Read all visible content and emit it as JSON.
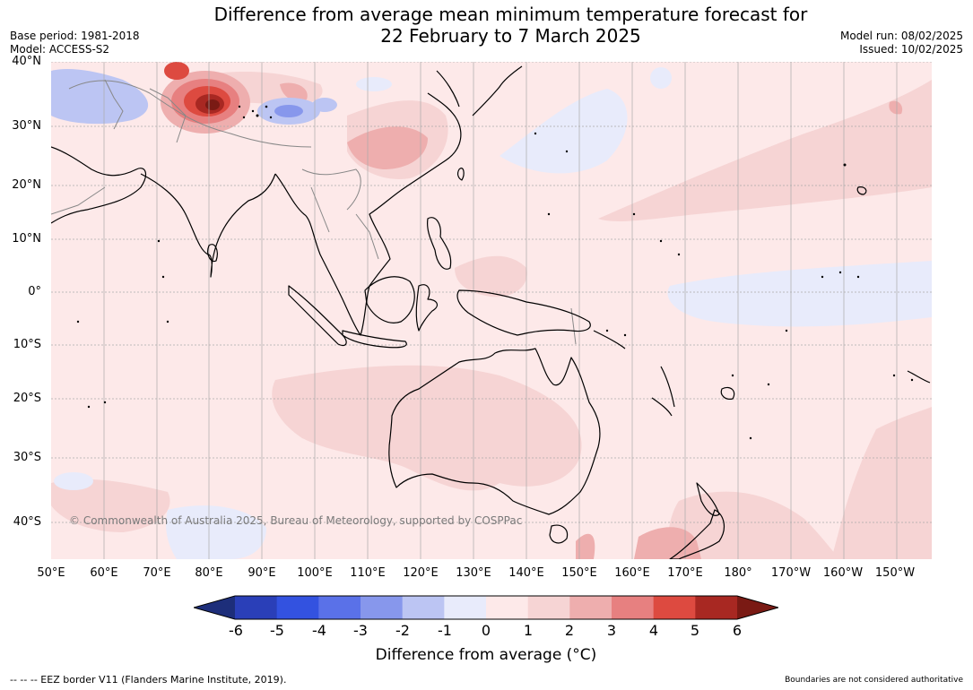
{
  "header": {
    "title_line1": "Difference from average mean minimum temperature forecast for",
    "title_line2": "22 February to 7 March 2025",
    "base_period": "Base period: 1981-2018",
    "model": "Model: ACCESS-S2",
    "model_run": "Model run: 08/02/2025",
    "issued": "Issued: 10/02/2025"
  },
  "map": {
    "lat_labels": [
      "40°N",
      "30°N",
      "20°N",
      "10°N",
      "0°",
      "10°S",
      "20°S",
      "30°S",
      "40°S"
    ],
    "lon_labels": [
      "50°E",
      "60°E",
      "70°E",
      "80°E",
      "90°E",
      "100°E",
      "110°E",
      "120°E",
      "130°E",
      "140°E",
      "150°E",
      "160°E",
      "170°E",
      "180°",
      "170°W",
      "160°W",
      "150°W"
    ],
    "copyright": "© Commonwealth of Australia 2025, Bureau of Meteorology, supported by COSPPac"
  },
  "legend": {
    "title": "Difference from average (°C)",
    "ticks": [
      "-6",
      "-5",
      "-4",
      "-3",
      "-2",
      "-1",
      "0",
      "1",
      "2",
      "3",
      "4",
      "5",
      "6"
    ],
    "colors": [
      "#1d2e7a",
      "#2a3fb8",
      "#3352e0",
      "#5a71e8",
      "#8797ec",
      "#bcc5f3",
      "#e8ebfb",
      "#fde9e9",
      "#f6d4d4",
      "#eeaeae",
      "#e78080",
      "#dd4a40",
      "#a82822",
      "#7a1a14"
    ]
  },
  "footer": {
    "eez_note": "--  --  -- EEZ border V11 (Flanders Marine Institute, 2019).",
    "boundaries_note": "Boundaries are not considered authoritative"
  }
}
